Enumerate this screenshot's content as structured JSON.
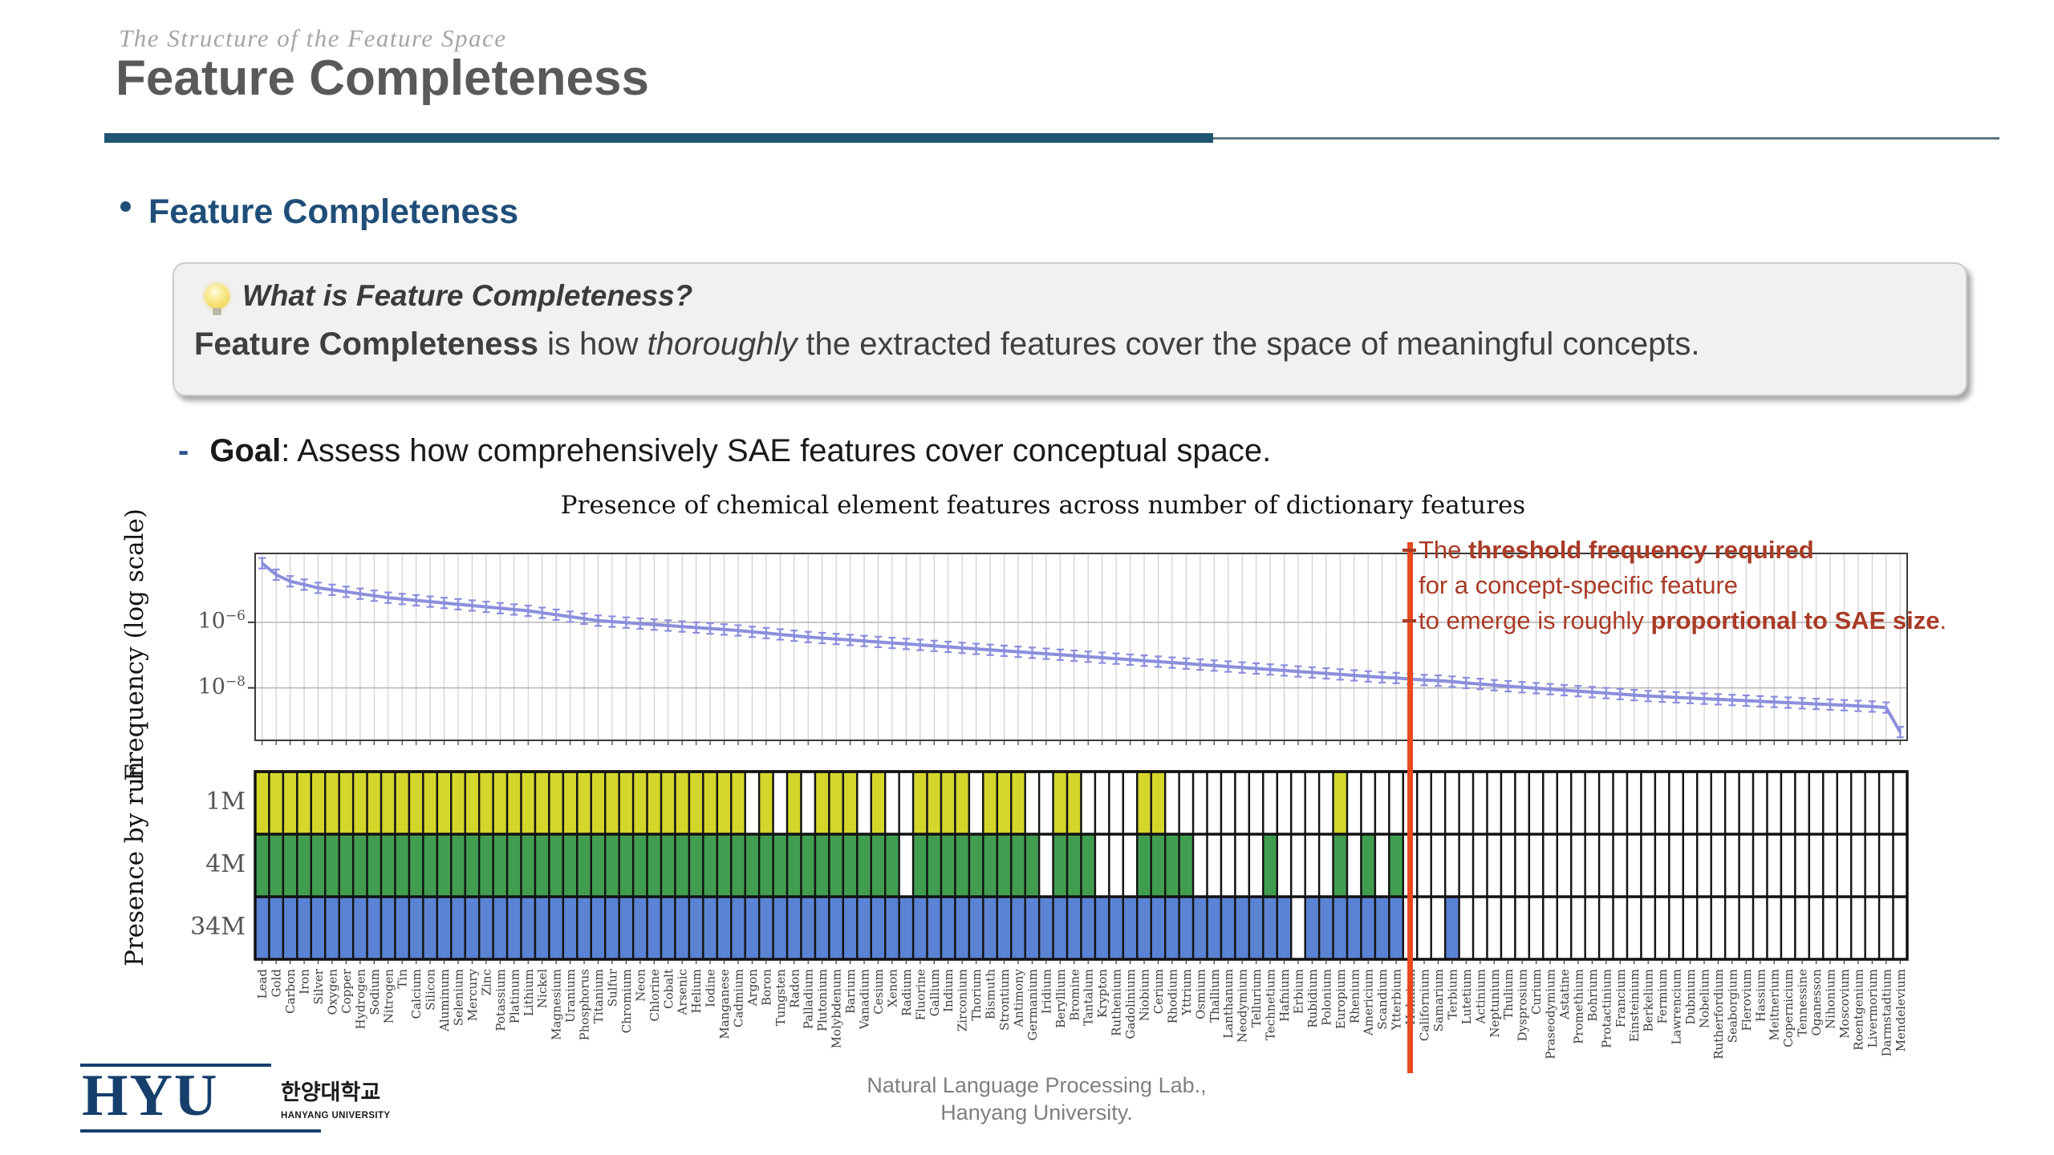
{
  "slide": {
    "kicker": "The Structure of the Feature Space",
    "title": "Feature Completeness",
    "bullet_heading": "Feature Completeness",
    "callout": {
      "icon": "lightbulb-icon",
      "heading": "What is Feature Completeness?",
      "body_segments": [
        {
          "t": "Feature Completeness",
          "b": true
        },
        {
          "t": " is how "
        },
        {
          "t": "thoroughly",
          "i": true
        },
        {
          "t": " the extracted features cover the space of meaningful concepts."
        }
      ]
    },
    "goal": {
      "dash": "-",
      "segments": [
        {
          "t": "Goal",
          "b": true
        },
        {
          "t": ": Assess how comprehensively SAE features cover conceptual space."
        }
      ]
    },
    "annotation": {
      "color": "#a93b26",
      "lines": [
        [
          {
            "t": "The "
          },
          {
            "t": "threshold frequency required",
            "b": true
          }
        ],
        [
          {
            "t": "for a concept-specific feature"
          }
        ],
        [
          {
            "t": "to emerge is roughly "
          },
          {
            "t": "proportional to SAE size",
            "b": true
          },
          {
            "t": "."
          }
        ]
      ]
    },
    "footer": {
      "logo_text": "HYU",
      "logo_korean": "한양대학교",
      "logo_sub": "HANYANG UNIVERSITY",
      "credit_line1": "Natural Language Processing Lab.,",
      "credit_line2": "Hanyang University."
    }
  },
  "chart_data": {
    "type": "line+presence-grid",
    "title": "Presence of chemical element features across number of dictionary features",
    "x_categories": [
      "Lead",
      "Gold",
      "Carbon",
      "Iron",
      "Silver",
      "Oxygen",
      "Copper",
      "Hydrogen",
      "Sodium",
      "Nitrogen",
      "Tin",
      "Calcium",
      "Silicon",
      "Aluminum",
      "Selenium",
      "Mercury",
      "Zinc",
      "Potassium",
      "Platinum",
      "Lithium",
      "Nickel",
      "Magnesium",
      "Uranium",
      "Phosphorus",
      "Titanium",
      "Sulfur",
      "Chromium",
      "Neon",
      "Chlorine",
      "Cobalt",
      "Arsenic",
      "Helium",
      "Iodine",
      "Manganese",
      "Cadmium",
      "Argon",
      "Boron",
      "Tungsten",
      "Radon",
      "Palladium",
      "Plutonium",
      "Molybdenum",
      "Barium",
      "Vanadium",
      "Cesium",
      "Xenon",
      "Radium",
      "Fluorine",
      "Gallium",
      "Indium",
      "Zirconium",
      "Thorium",
      "Bismuth",
      "Strontium",
      "Antimony",
      "Germanium",
      "Iridium",
      "Beryllium",
      "Bromine",
      "Tantalum",
      "Krypton",
      "Ruthenium",
      "Gadolinium",
      "Niobium",
      "Cerium",
      "Rhodium",
      "Yttrium",
      "Osmium",
      "Thallium",
      "Lanthanum",
      "Neodymium",
      "Tellurium",
      "Technetium",
      "Hafnium",
      "Erbium",
      "Rubidium",
      "Polonium",
      "Europium",
      "Rhenium",
      "Americium",
      "Scandium",
      "Ytterbium",
      "Holmium",
      "Californium",
      "Samarium",
      "Terbium",
      "Lutetium",
      "Actinium",
      "Neptunium",
      "Thulium",
      "Dysprosium",
      "Curium",
      "Praseodymium",
      "Astatine",
      "Promethium",
      "Bohrium",
      "Protactinium",
      "Francium",
      "Einsteinium",
      "Berkelium",
      "Fermium",
      "Lawrencium",
      "Dubnium",
      "Nobelium",
      "Rutherfordium",
      "Seaborgium",
      "Flerovium",
      "Hassium",
      "Meitnerium",
      "Copernicium",
      "Tennessine",
      "Oganesson",
      "Nihonium",
      "Moscovium",
      "Roentgenium",
      "Livermorium",
      "Darmstadtium",
      "Mendelevium"
    ],
    "top_panel": {
      "ylabel": "Frequency (log scale)",
      "yticks": [
        {
          "mant": "10",
          "exp": "−6",
          "value_log10": -6
        },
        {
          "mant": "10",
          "exp": "−8",
          "value_log10": -8
        }
      ],
      "ylim_log10": [
        -9.6,
        -3.9
      ],
      "grid": true,
      "series": [
        {
          "name": "feature frequency",
          "color": "#8b8fdc",
          "errorbar_log10": 0.16,
          "freq_log10": [
            -4.2,
            -4.55,
            -4.75,
            -4.85,
            -4.95,
            -5.01,
            -5.07,
            -5.13,
            -5.19,
            -5.25,
            -5.29,
            -5.33,
            -5.37,
            -5.41,
            -5.45,
            -5.49,
            -5.53,
            -5.57,
            -5.61,
            -5.65,
            -5.71,
            -5.77,
            -5.83,
            -5.89,
            -5.95,
            -5.98,
            -6.01,
            -6.04,
            -6.07,
            -6.1,
            -6.13,
            -6.16,
            -6.19,
            -6.22,
            -6.25,
            -6.29,
            -6.33,
            -6.37,
            -6.41,
            -6.45,
            -6.48,
            -6.51,
            -6.54,
            -6.57,
            -6.6,
            -6.63,
            -6.66,
            -6.69,
            -6.72,
            -6.75,
            -6.78,
            -6.81,
            -6.84,
            -6.87,
            -6.9,
            -6.93,
            -6.96,
            -6.99,
            -7.02,
            -7.05,
            -7.08,
            -7.11,
            -7.14,
            -7.17,
            -7.2,
            -7.23,
            -7.26,
            -7.29,
            -7.32,
            -7.35,
            -7.38,
            -7.41,
            -7.44,
            -7.47,
            -7.5,
            -7.53,
            -7.56,
            -7.59,
            -7.62,
            -7.65,
            -7.68,
            -7.7,
            -7.73,
            -7.76,
            -7.78,
            -7.81,
            -7.85,
            -7.88,
            -7.92,
            -7.95,
            -7.98,
            -8.01,
            -8.04,
            -8.07,
            -8.1,
            -8.13,
            -8.16,
            -8.19,
            -8.22,
            -8.25,
            -8.27,
            -8.29,
            -8.31,
            -8.33,
            -8.35,
            -8.37,
            -8.39,
            -8.41,
            -8.43,
            -8.45,
            -8.47,
            -8.49,
            -8.51,
            -8.53,
            -8.55,
            -8.57,
            -8.6,
            -9.35
          ]
        }
      ]
    },
    "bottom_panel": {
      "ylabel": "Presence by run",
      "rows": [
        {
          "label": "1M",
          "color": "#d4d62c",
          "present": "1111111111111111111111111111111111101010111010011110111001100001100000000000010000000000000000000000000000000000000000"
        },
        {
          "label": "4M",
          "color": "#419e50",
          "present": "1111111111111111111111111111111111111111111111011111111101110001111000001000010101000000000000000000000000000000000000"
        },
        {
          "label": "34M",
          "color": "#5b83d4",
          "present": "1111111111111111111111111111111111111111111111111111111111111111111111111101111111000100000000000000000000000000000000"
        }
      ]
    },
    "threshold_line": {
      "color": "#e8491f",
      "x_category": "Holmium",
      "x_index": 83
    }
  }
}
